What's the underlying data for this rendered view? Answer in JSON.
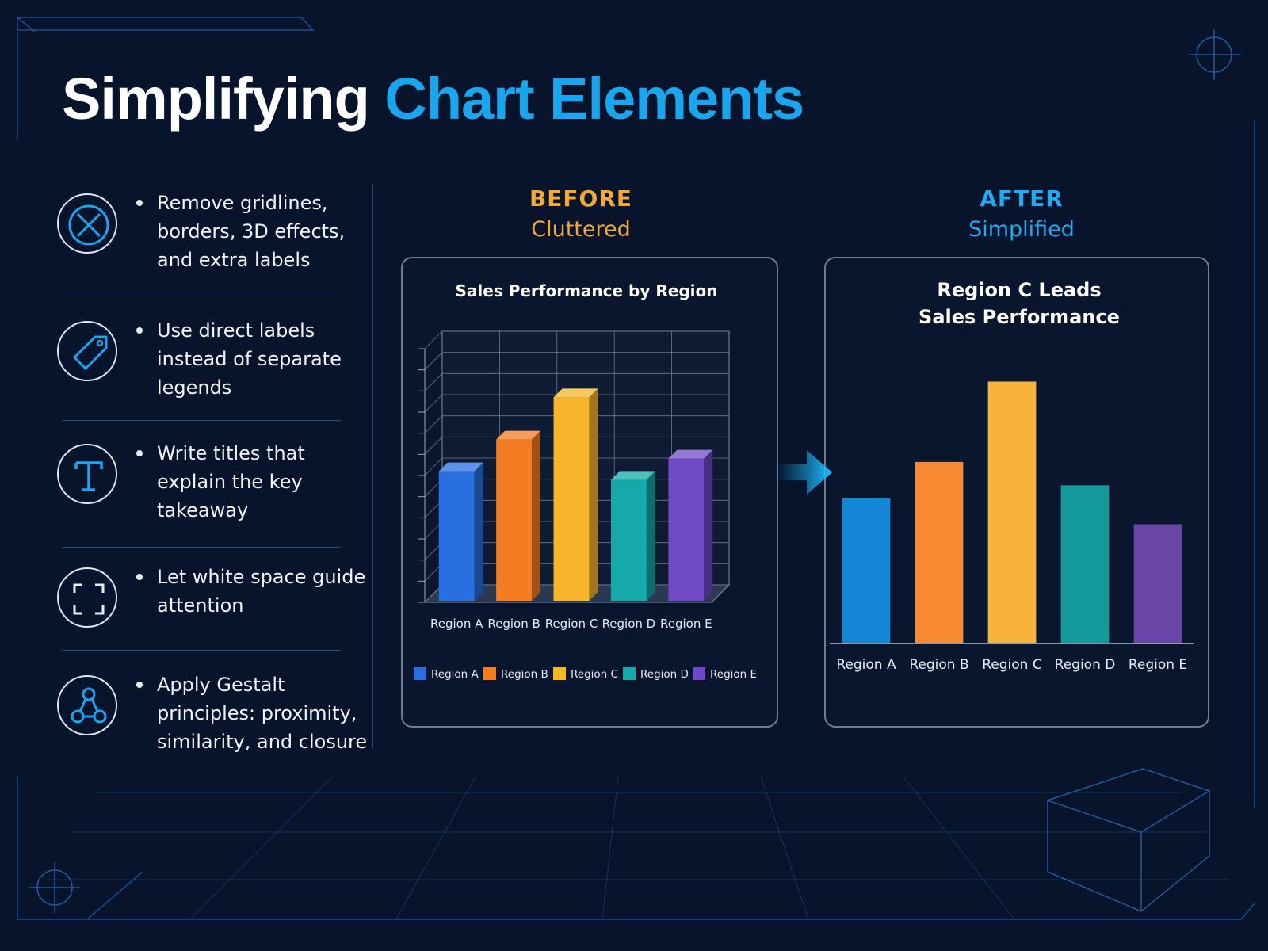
{
  "title": {
    "part1": "Simplifying",
    "part2": "Chart Elements"
  },
  "tips": [
    {
      "icon": "circle-x-icon",
      "text": "Remove gridlines, borders, 3D effects, and extra labels"
    },
    {
      "icon": "tag-icon",
      "text": "Use direct labels instead of separate legends"
    },
    {
      "icon": "title-t-icon",
      "text": "Write titles that explain the key takeaway"
    },
    {
      "icon": "white-space-frame-icon",
      "text": "Let white space guide attention"
    },
    {
      "icon": "network-nodes-icon",
      "text": "Apply Gestalt principles: proximity, similarity, and closure"
    }
  ],
  "before": {
    "heading": "BEFORE",
    "subheading": "Cluttered"
  },
  "after": {
    "heading": "AFTER",
    "subheading": "Simplified"
  },
  "chart_data": [
    {
      "type": "bar",
      "title": "Sales Performance by Region",
      "style": "3d-cluttered",
      "categories": [
        "Region A",
        "Region B",
        "Region C",
        "Region D",
        "Region E"
      ],
      "values": [
        62,
        77,
        97,
        58,
        68
      ],
      "ylim": [
        0,
        120
      ],
      "grid": true,
      "legend": {
        "placement": "bottom",
        "entries": [
          "Region A",
          "Region B",
          "Region C",
          "Region D",
          "Region E"
        ]
      },
      "colors": [
        "#2a6fe0",
        "#f47c23",
        "#f7b52c",
        "#16a9a9",
        "#6f49c6"
      ]
    },
    {
      "type": "bar",
      "title": "Region C Leads Sales Performance",
      "style": "flat-simplified",
      "categories": [
        "Region A",
        "Region B",
        "Region C",
        "Region D",
        "Region E"
      ],
      "values": [
        56,
        70,
        101,
        61,
        46
      ],
      "ylim": [
        0,
        110
      ],
      "grid": false,
      "colors": [
        "#1585d8",
        "#f78a33",
        "#f8b43a",
        "#14999a",
        "#6a47a6"
      ]
    }
  ]
}
